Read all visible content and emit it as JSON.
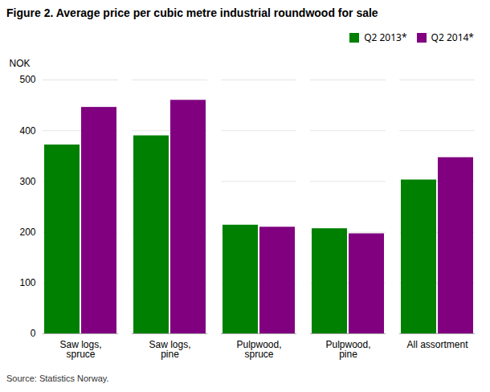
{
  "chart_data": {
    "type": "bar",
    "title": "Figure 2. Average price per cubic metre industrial roundwood for sale",
    "ylabel": "NOK",
    "caption": "Source: Statistics Norway.",
    "categories": [
      "Saw logs,\nspruce",
      "Saw logs,\npine",
      "Pulpwood,\nspruce",
      "Pulpwood,\npine",
      "All assortment"
    ],
    "series": [
      {
        "name": "Q2 2013*",
        "color": "#008000",
        "values": [
          372,
          390,
          214,
          207,
          303
        ]
      },
      {
        "name": "Q2 2014*",
        "color": "#800080",
        "values": [
          446,
          460,
          210,
          197,
          347
        ]
      }
    ],
    "ylim": [
      0,
      500
    ],
    "yticks": [
      0,
      100,
      200,
      300,
      400,
      500
    ],
    "grid": true,
    "legend": "upper right"
  }
}
